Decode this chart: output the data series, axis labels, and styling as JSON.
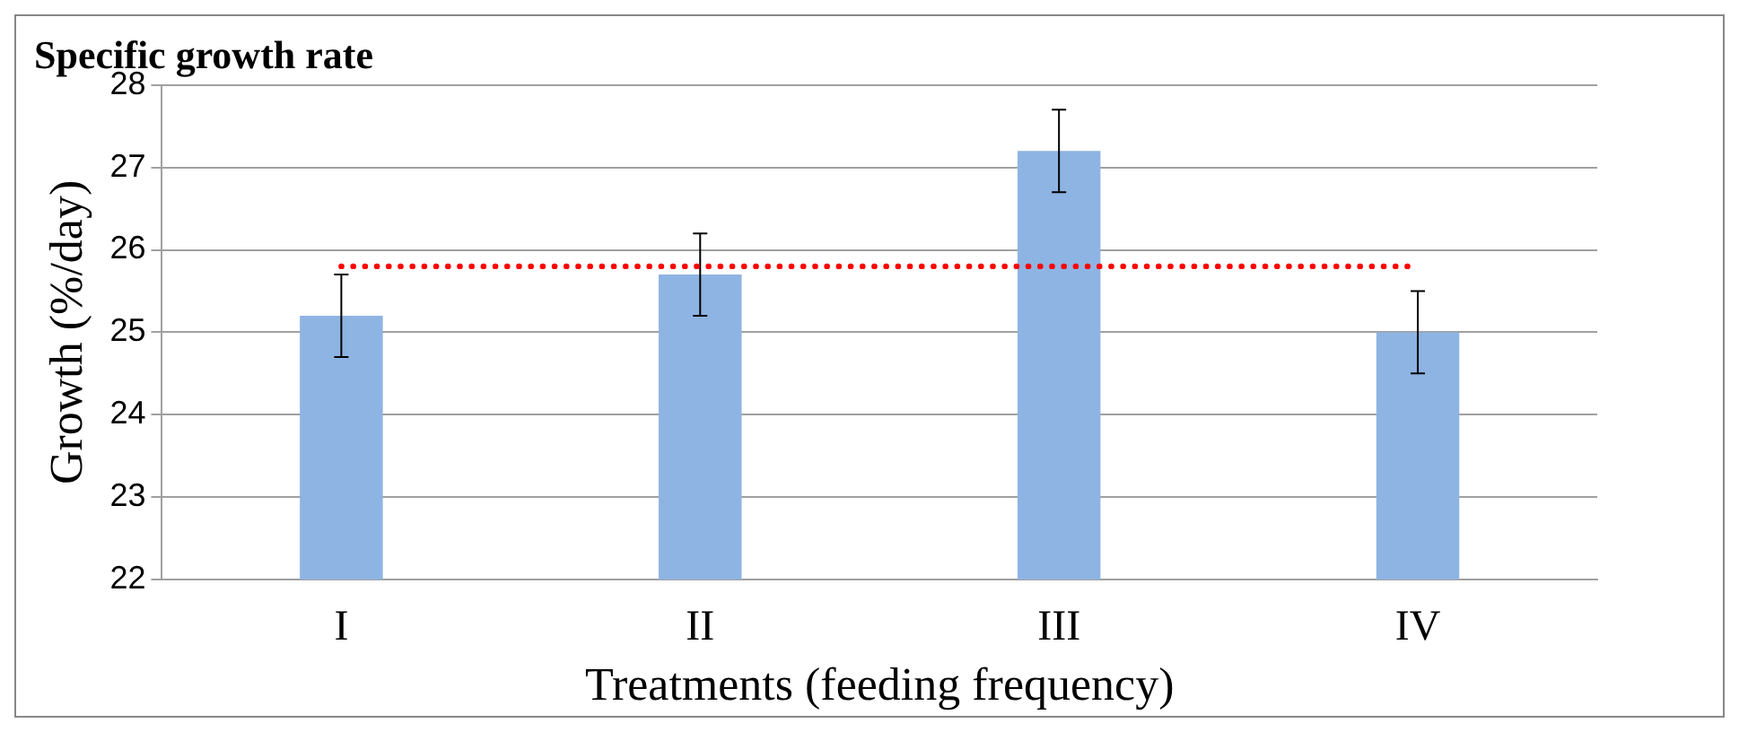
{
  "chart_data": {
    "type": "bar",
    "title": "Specific growth rate",
    "xlabel": "Treatments (feeding frequency)",
    "ylabel": "Growth (%/day)",
    "categories": [
      "I",
      "II",
      "III",
      "IV"
    ],
    "values": [
      25.2,
      25.7,
      27.2,
      25.0
    ],
    "errors": [
      0.5,
      0.5,
      0.5,
      0.5
    ],
    "color": "#8eb4e3",
    "ylim": [
      22,
      28
    ],
    "yticks": [
      22,
      23,
      24,
      25,
      26,
      27,
      28
    ],
    "grid": "y",
    "ref_lines": [
      {
        "axis": "y",
        "value": 25.8,
        "color": "#ff0000",
        "line_style": "dotted"
      }
    ]
  }
}
